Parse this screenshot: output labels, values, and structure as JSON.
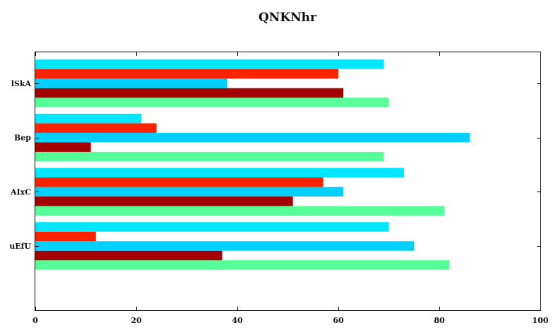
{
  "chart_data": {
    "type": "bar",
    "orientation": "horizontal",
    "title": "QNKNhr",
    "xlabel": "",
    "ylabel": "",
    "xlim": [
      0,
      100
    ],
    "xticks": [
      "0",
      "20",
      "40",
      "60",
      "80",
      "100"
    ],
    "categories": [
      "uEfU",
      "AIxC",
      "Bep",
      "lSkA"
    ],
    "grid": false,
    "legend": "none",
    "series": [
      {
        "color": "#57ff99",
        "values": [
          82,
          81,
          69,
          70
        ]
      },
      {
        "color": "#a30000",
        "values": [
          37,
          51,
          11,
          61
        ]
      },
      {
        "color": "#00d0ff",
        "values": [
          75,
          61,
          86,
          38
        ]
      },
      {
        "color": "#ff2300",
        "values": [
          12,
          57,
          24,
          60
        ]
      },
      {
        "color": "#00e6ff",
        "values": [
          70,
          73,
          21,
          69
        ]
      }
    ]
  }
}
